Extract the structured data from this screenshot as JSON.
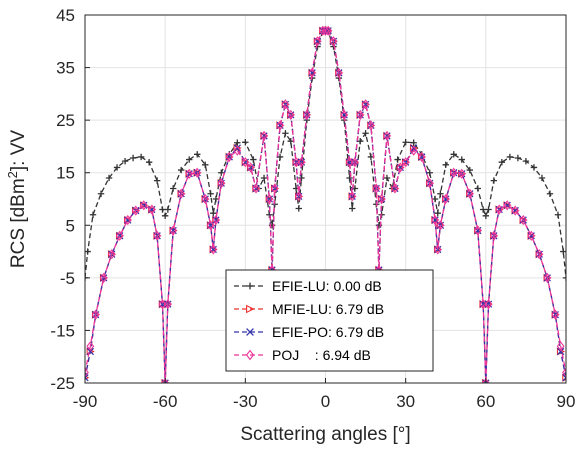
{
  "chart_data": {
    "type": "line",
    "xlabel": "Scattering angles [°]",
    "ylabel_parts": [
      "RCS [dBm",
      "2",
      "]: VV"
    ],
    "xlim": [
      -90,
      90
    ],
    "ylim": [
      -25,
      45
    ],
    "xticks": [
      -90,
      -60,
      -30,
      0,
      30,
      60,
      90
    ],
    "yticks": [
      -25,
      -15,
      -5,
      5,
      15,
      25,
      35,
      45
    ],
    "grid": true,
    "legend_position": "bottom-center",
    "series": [
      {
        "name": "EFIE-LU: 0.00 dB",
        "color": "#333333",
        "marker": "plus",
        "dash": "dashed",
        "x": [
          -90,
          -89,
          -87,
          -84,
          -81,
          -78,
          -75,
          -72,
          -69,
          -66,
          -63,
          -61,
          -60,
          -59,
          -57,
          -54,
          -51,
          -48,
          -45,
          -43,
          -42,
          -41,
          -39,
          -36,
          -33,
          -30,
          -27,
          -25,
          -23,
          -21,
          -20,
          -19,
          -17,
          -15,
          -13,
          -11,
          -10,
          -9,
          -7,
          -5,
          -3,
          -1,
          0,
          1,
          3,
          5,
          7,
          9,
          10,
          11,
          13,
          15,
          17,
          19,
          20,
          21,
          23,
          25,
          27,
          30,
          33,
          36,
          39,
          41,
          42,
          43,
          45,
          48,
          51,
          54,
          57,
          59,
          60,
          61,
          63,
          66,
          69,
          72,
          75,
          78,
          81,
          84,
          87,
          89,
          90
        ],
        "y": [
          -5,
          0,
          7,
          11,
          14,
          16,
          17.2,
          17.8,
          18,
          17,
          13.5,
          8,
          6.8,
          8,
          12,
          15.5,
          17.5,
          18.5,
          16.5,
          11,
          7.3,
          10,
          15,
          18.5,
          20.7,
          20.8,
          17.5,
          12,
          14,
          7,
          5,
          9,
          18,
          22.5,
          21,
          12,
          8.2,
          14,
          25,
          33,
          39,
          41.8,
          42.3,
          41.8,
          39,
          33,
          25,
          14,
          8.2,
          12,
          21,
          22.5,
          18,
          9,
          5,
          7,
          14,
          12,
          17.5,
          20.8,
          20.7,
          18.5,
          15,
          10,
          7.3,
          11,
          16.5,
          18.5,
          17.5,
          15.5,
          12,
          8,
          6.8,
          8,
          13.5,
          17,
          18,
          17.8,
          17.2,
          16,
          14,
          11,
          7,
          0,
          -5
        ]
      },
      {
        "name": "MFIE-LU: 6.79 dB",
        "color": "#ee3333",
        "marker": "triangle-right",
        "dash": "dashed",
        "x": [
          -90,
          -88,
          -86,
          -83,
          -80,
          -77,
          -74,
          -71,
          -68,
          -65,
          -63,
          -61,
          -60,
          -59,
          -57,
          -54,
          -51,
          -48,
          -45,
          -43,
          -42,
          -41,
          -39,
          -36,
          -33,
          -30,
          -28,
          -26,
          -23,
          -21,
          -20,
          -19,
          -17,
          -15,
          -13,
          -11,
          -10,
          -9,
          -7,
          -5,
          -3,
          -1,
          0,
          1,
          3,
          5,
          7,
          9,
          10,
          11,
          13,
          15,
          17,
          19,
          20,
          21,
          23,
          26,
          28,
          30,
          33,
          36,
          39,
          41,
          42,
          43,
          45,
          48,
          51,
          54,
          57,
          59,
          60,
          61,
          63,
          65,
          68,
          71,
          74,
          77,
          80,
          83,
          86,
          88,
          90
        ],
        "y": [
          -24,
          -19,
          -12,
          -5,
          -0.5,
          3,
          6,
          7.8,
          8.8,
          8,
          3,
          -10,
          -25,
          -10,
          4,
          11,
          14.8,
          15,
          10,
          5,
          0.4,
          6,
          13,
          18,
          19.7,
          17,
          16,
          12,
          22,
          10,
          -3.5,
          12,
          24,
          28,
          26,
          17,
          10.5,
          17,
          26,
          34,
          40,
          42,
          42,
          42,
          40,
          34,
          26,
          17,
          10.5,
          17,
          26,
          28,
          24,
          12,
          -3.5,
          10,
          22,
          12,
          16,
          17,
          19.7,
          18,
          13,
          6,
          0.4,
          5,
          10,
          15,
          14.8,
          11,
          4,
          -10,
          -25,
          -10,
          3,
          8,
          8.8,
          7.8,
          6,
          3,
          -0.5,
          -5,
          -12,
          -19,
          -24
        ]
      },
      {
        "name": "EFIE-PO: 6.79 dB",
        "color": "#3333aa",
        "marker": "x",
        "dash": "dashed",
        "x": [
          -90,
          -88,
          -86,
          -83,
          -80,
          -77,
          -74,
          -71,
          -68,
          -65,
          -63,
          -61,
          -60,
          -59,
          -57,
          -54,
          -51,
          -48,
          -45,
          -43,
          -42,
          -41,
          -39,
          -36,
          -33,
          -30,
          -28,
          -26,
          -23,
          -21,
          -20,
          -19,
          -17,
          -15,
          -13,
          -11,
          -10,
          -9,
          -7,
          -5,
          -3,
          -1,
          0,
          1,
          3,
          5,
          7,
          9,
          10,
          11,
          13,
          15,
          17,
          19,
          20,
          21,
          23,
          26,
          28,
          30,
          33,
          36,
          39,
          41,
          42,
          43,
          45,
          48,
          51,
          54,
          57,
          59,
          60,
          61,
          63,
          65,
          68,
          71,
          74,
          77,
          80,
          83,
          86,
          88,
          90
        ],
        "y": [
          -24,
          -19,
          -12,
          -5,
          -0.5,
          3,
          6,
          7.8,
          8.8,
          8,
          3,
          -10,
          -25,
          -10,
          4,
          11,
          14.8,
          15,
          10,
          5,
          0.4,
          6,
          13,
          18,
          19.7,
          17,
          16,
          12,
          22,
          10,
          -3.5,
          12,
          24,
          28,
          26,
          17,
          10.5,
          17,
          26,
          34,
          40,
          42,
          42,
          42,
          40,
          34,
          26,
          17,
          10.5,
          17,
          26,
          28,
          24,
          12,
          -3.5,
          10,
          22,
          12,
          16,
          17,
          19.7,
          18,
          13,
          6,
          0.4,
          5,
          10,
          15,
          14.8,
          11,
          4,
          -10,
          -25,
          -10,
          3,
          8,
          8.8,
          7.8,
          6,
          3,
          -0.5,
          -5,
          -12,
          -19,
          -24
        ]
      },
      {
        "name": "POJ    : 6.94 dB",
        "color": "#ee3399",
        "marker": "diamond",
        "dash": "dashed",
        "x": [
          -90,
          -88,
          -86,
          -83,
          -80,
          -77,
          -74,
          -71,
          -68,
          -65,
          -63,
          -61,
          -60,
          -59,
          -57,
          -54,
          -51,
          -48,
          -45,
          -43,
          -42,
          -41,
          -39,
          -36,
          -33,
          -30,
          -28,
          -26,
          -23,
          -21,
          -20,
          -19,
          -17,
          -15,
          -13,
          -11,
          -10,
          -9,
          -7,
          -5,
          -3,
          -1,
          0,
          1,
          3,
          5,
          7,
          9,
          10,
          11,
          13,
          15,
          17,
          19,
          20,
          21,
          23,
          26,
          28,
          30,
          33,
          36,
          39,
          41,
          42,
          43,
          45,
          48,
          51,
          54,
          57,
          59,
          60,
          61,
          63,
          65,
          68,
          71,
          74,
          77,
          80,
          83,
          86,
          88,
          90
        ],
        "y": [
          -23,
          -18,
          -12,
          -5,
          -0.5,
          3,
          6,
          7.8,
          8.8,
          8,
          3,
          -10,
          -25,
          -10,
          4,
          11,
          14.8,
          15,
          10,
          5,
          0.4,
          6,
          13,
          18,
          19.2,
          17,
          16,
          12,
          22,
          10,
          -3.5,
          12,
          24,
          28,
          26,
          17,
          10.5,
          17,
          26,
          34,
          40,
          42,
          42,
          42,
          40,
          34,
          26,
          17,
          10.5,
          17,
          26,
          28,
          24,
          12,
          -3.5,
          10,
          22,
          12,
          16,
          17,
          19.2,
          18,
          13,
          6,
          0.4,
          5,
          10,
          15,
          14.8,
          11,
          4,
          -10,
          -25,
          -10,
          3,
          8,
          8.8,
          7.8,
          6,
          3,
          -0.5,
          -5,
          -12,
          -18,
          -23
        ]
      }
    ]
  }
}
